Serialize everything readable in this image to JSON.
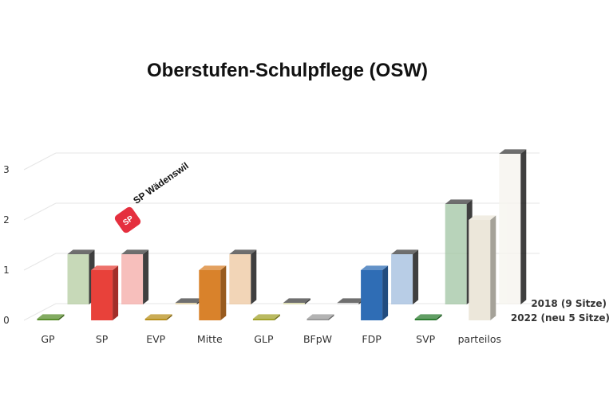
{
  "chart_data": {
    "type": "bar",
    "title": "Oberstufen-Schulpflege (OSW)",
    "categories": [
      "GP",
      "SP",
      "EVP",
      "Mitte",
      "GLP",
      "BFpW",
      "FDP",
      "SVP",
      "parteilos"
    ],
    "y_ticks": [
      "0",
      "1",
      "2",
      "3"
    ],
    "ylim": [
      0,
      3
    ],
    "grid": true,
    "legend": "right",
    "series": [
      {
        "name": "2018 (9 Sitze)",
        "values": [
          1,
          1,
          0,
          1,
          0,
          0,
          1,
          2,
          3
        ]
      },
      {
        "name": "2022 (neu 5 Sitze)",
        "values": [
          0,
          1,
          0,
          1,
          0,
          0,
          1,
          0,
          2
        ]
      }
    ],
    "colors": {
      "GP": "#5a8f2e",
      "SP": "#e8413a",
      "EVP": "#b8901e",
      "Mitte": "#d9822b",
      "GLP": "#a3a32e",
      "BFpW": "#9a9a9a",
      "FDP": "#2f6db5",
      "SVP": "#2e7d32",
      "parteilos": "#ece7da"
    }
  },
  "logo": {
    "badge": "SP",
    "text": "SP Wädenswil",
    "color": "#e52f3e"
  }
}
